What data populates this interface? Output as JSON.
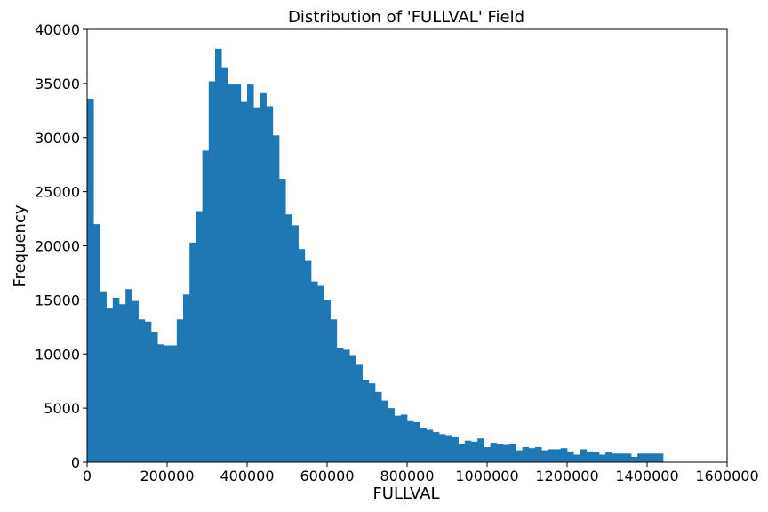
{
  "chart_data": {
    "type": "bar",
    "title": "Distribution of 'FULLVAL' Field",
    "xlabel": "FULLVAL",
    "ylabel": "Frequency",
    "xlim": [
      0,
      1600000
    ],
    "ylim": [
      0,
      40000
    ],
    "bin_width": 16000,
    "xticks": [
      0,
      200000,
      400000,
      600000,
      800000,
      1000000,
      1200000,
      1400000,
      1600000
    ],
    "xtick_labels": [
      "0",
      "200000",
      "400000",
      "600000",
      "800000",
      "1000000",
      "1200000",
      "1400000",
      "1600000"
    ],
    "yticks": [
      0,
      5000,
      10000,
      15000,
      20000,
      25000,
      30000,
      35000,
      40000
    ],
    "ytick_labels": [
      "0",
      "5000",
      "10000",
      "15000",
      "20000",
      "25000",
      "30000",
      "35000",
      "40000"
    ],
    "grid": false,
    "color": "#1f77b4",
    "series": [
      {
        "values": [
          33600,
          22000,
          15800,
          14200,
          15200,
          14600,
          16000,
          14900,
          13200,
          13000,
          12000,
          10900,
          10800,
          10800,
          13200,
          15500,
          20300,
          23200,
          28800,
          35200,
          38200,
          36500,
          34900,
          34900,
          33300,
          34900,
          32800,
          34100,
          32900,
          30200,
          26200,
          22900,
          21900,
          19700,
          18600,
          16700,
          16300,
          15000,
          13200,
          10600,
          10400,
          9900,
          9000,
          7600,
          7300,
          6500,
          5700,
          5000,
          4300,
          4400,
          3800,
          3700,
          3200,
          3000,
          2800,
          2600,
          2500,
          2300,
          1700,
          2000,
          1900,
          2200,
          1400,
          1800,
          1700,
          1600,
          1700,
          1100,
          1400,
          1300,
          1400,
          1100,
          1200,
          1200,
          1300,
          1000,
          700,
          1200,
          1000,
          900,
          700,
          900,
          800,
          800,
          800,
          500,
          800,
          800,
          800,
          800
        ]
      }
    ]
  }
}
